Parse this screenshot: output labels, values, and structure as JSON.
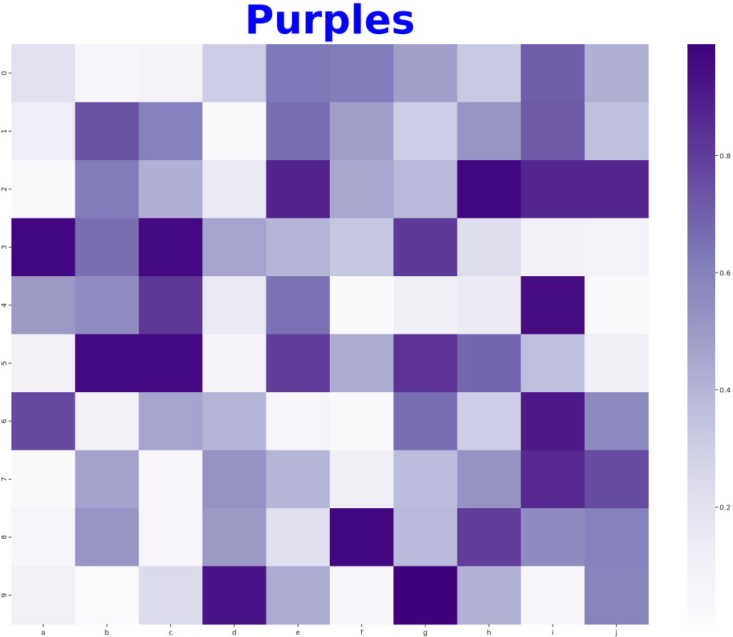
{
  "chart_data": {
    "type": "heatmap",
    "title": "Purples",
    "colormap": "Purples",
    "x_categories": [
      "a",
      "b",
      "c",
      "d",
      "e",
      "f",
      "g",
      "h",
      "i",
      "j"
    ],
    "y_categories": [
      "0",
      "1",
      "2",
      "3",
      "4",
      "5",
      "6",
      "7",
      "8",
      "9"
    ],
    "values": [
      [
        0.2,
        0.05,
        0.07,
        0.3,
        0.63,
        0.62,
        0.48,
        0.32,
        0.71,
        0.42
      ],
      [
        0.12,
        0.74,
        0.6,
        0.02,
        0.66,
        0.48,
        0.3,
        0.52,
        0.72,
        0.36
      ],
      [
        0.03,
        0.62,
        0.42,
        0.14,
        0.88,
        0.45,
        0.38,
        0.97,
        0.87,
        0.87
      ],
      [
        0.97,
        0.66,
        0.96,
        0.46,
        0.4,
        0.33,
        0.81,
        0.22,
        0.09,
        0.08
      ],
      [
        0.5,
        0.55,
        0.82,
        0.15,
        0.65,
        0.02,
        0.11,
        0.14,
        0.95,
        0.03
      ],
      [
        0.09,
        0.96,
        0.96,
        0.07,
        0.8,
        0.44,
        0.83,
        0.68,
        0.36,
        0.11
      ],
      [
        0.77,
        0.09,
        0.46,
        0.4,
        0.06,
        0.03,
        0.66,
        0.3,
        0.91,
        0.57
      ],
      [
        0.02,
        0.47,
        0.04,
        0.53,
        0.4,
        0.11,
        0.37,
        0.53,
        0.86,
        0.76
      ],
      [
        0.05,
        0.52,
        0.05,
        0.5,
        0.21,
        0.97,
        0.38,
        0.8,
        0.56,
        0.6
      ],
      [
        0.1,
        0.01,
        0.24,
        0.93,
        0.44,
        0.05,
        0.99,
        0.41,
        0.04,
        0.59
      ]
    ],
    "colorbar": {
      "vmin": 0.0,
      "vmax": 0.99,
      "ticks": [
        0.2,
        0.4,
        0.6,
        0.8
      ],
      "tick_labels": [
        "0.2",
        "0.4",
        "0.6",
        "0.8"
      ]
    },
    "grid": false,
    "legend": "colorbar-right"
  }
}
